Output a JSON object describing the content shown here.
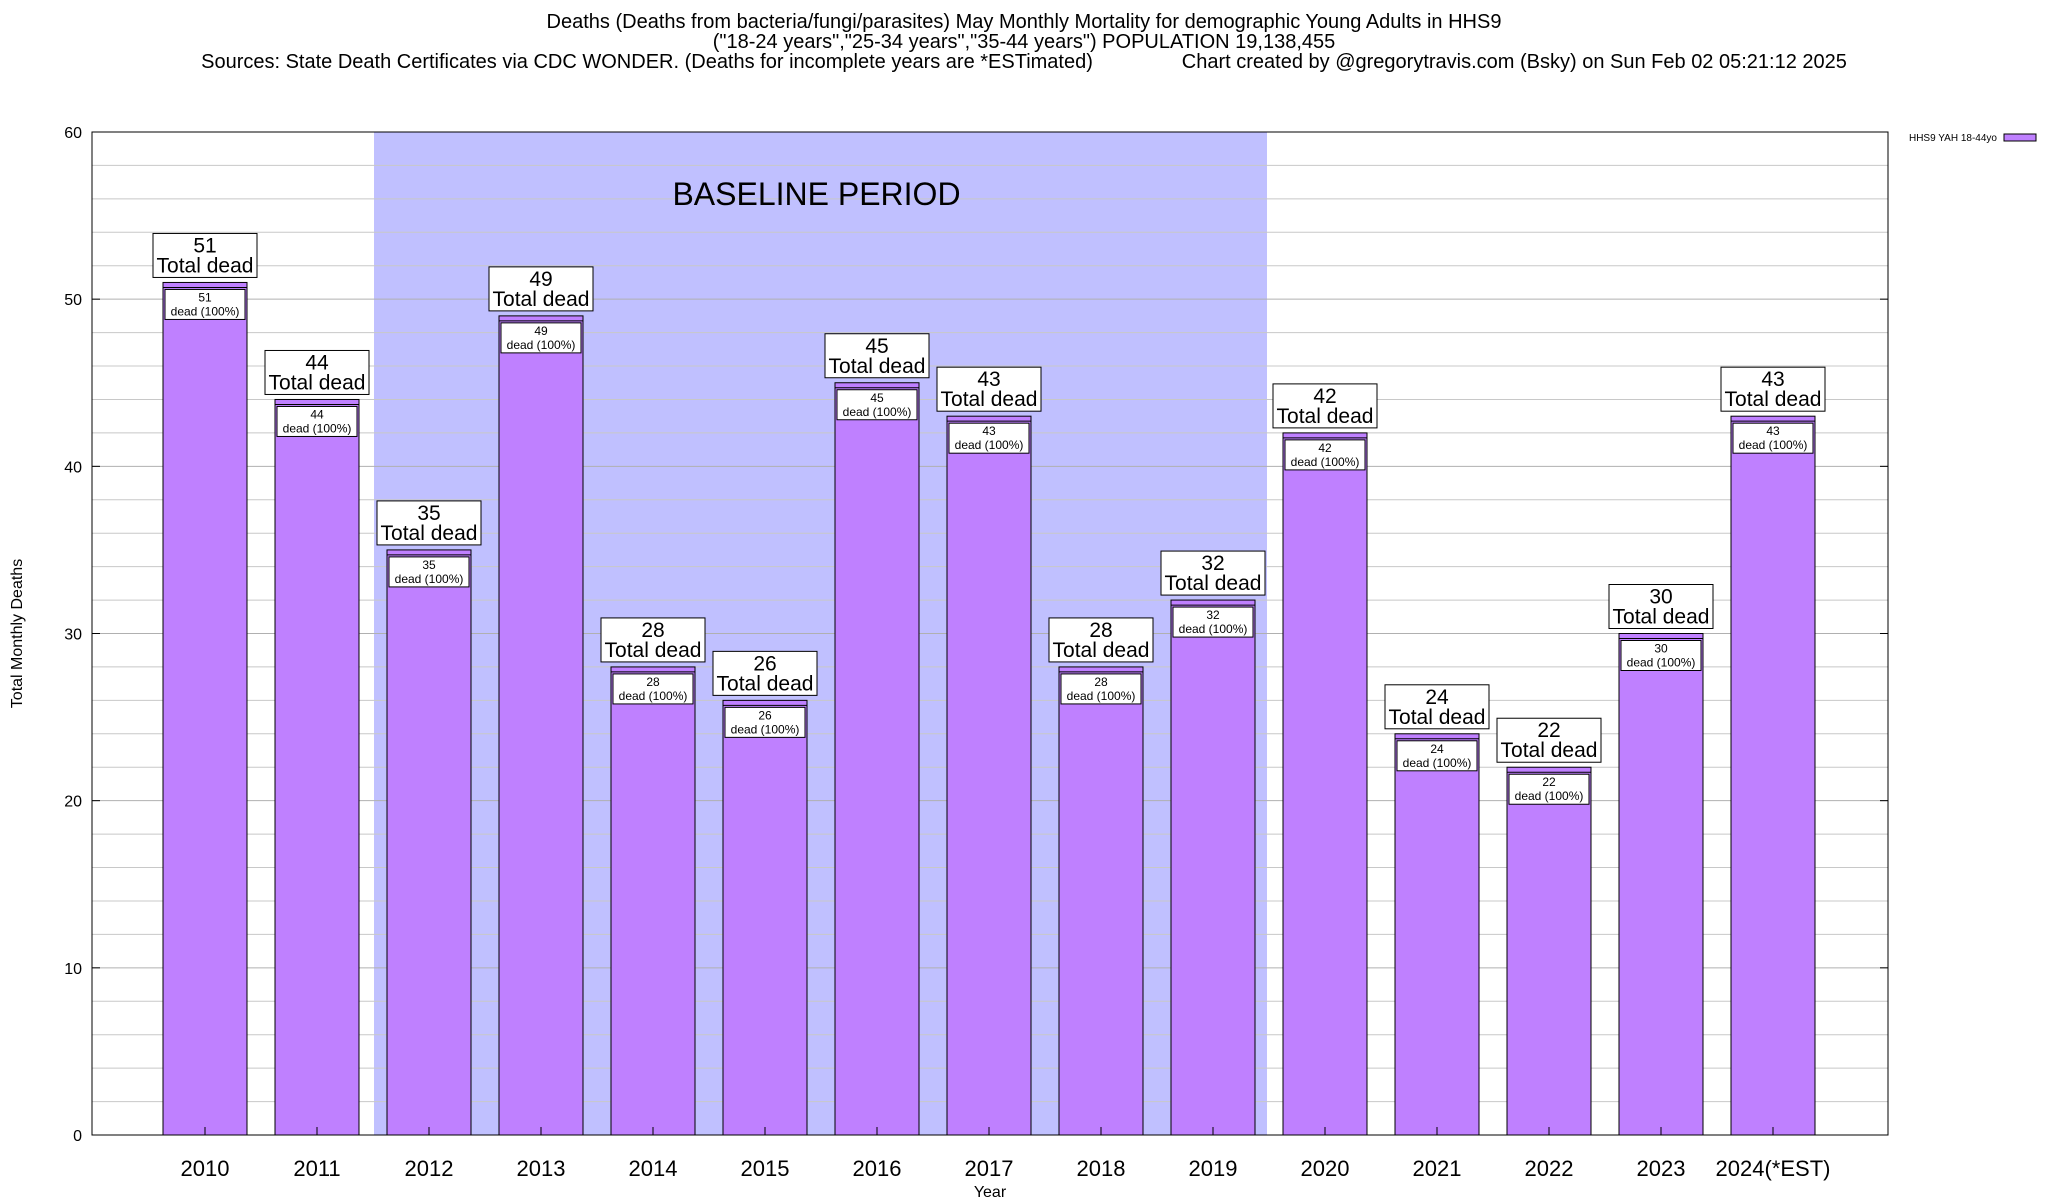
{
  "header": {
    "line1": "Deaths (Deaths from bacteria/fungi/parasites) May Monthly Mortality for demographic Young Adults in HHS9",
    "line2": "(\"18-24 years\",\"25-34 years\",\"35-44 years\") POPULATION 19,138,455",
    "line3": "Sources: State Death Certificates via CDC WONDER. (Deaths for incomplete years are *ESTimated)                Chart created by @gregorytravis.com (Bsky) on Sun Feb 02 05:21:12 2025"
  },
  "chart_data": {
    "type": "bar",
    "title": "Deaths (Deaths from bacteria/fungi/parasites) May Monthly Mortality for demographic Young Adults in HHS9",
    "xlabel": "Year",
    "ylabel": "Total Monthly Deaths",
    "ylim": [
      0,
      60
    ],
    "yticks": [
      0,
      10,
      20,
      30,
      40,
      50,
      60
    ],
    "grid": true,
    "legend_position": "top-right",
    "categories": [
      "2010",
      "2011",
      "2012",
      "2013",
      "2014",
      "2015",
      "2016",
      "2017",
      "2018",
      "2019",
      "2020",
      "2021",
      "2022",
      "2023",
      "2024(*EST)"
    ],
    "series": [
      {
        "name": "HHS9 YAH 18-44yo",
        "color": "#bf80ff",
        "values": [
          51,
          44,
          35,
          49,
          28,
          26,
          45,
          43,
          28,
          32,
          42,
          24,
          22,
          30,
          43
        ]
      }
    ],
    "total_label": "Total dead",
    "inner_label": "dead (100%)",
    "baseline_period": {
      "label": "BASELINE PERIOD",
      "from": "2012",
      "to": "2019",
      "color": "#c0c0ff"
    }
  }
}
